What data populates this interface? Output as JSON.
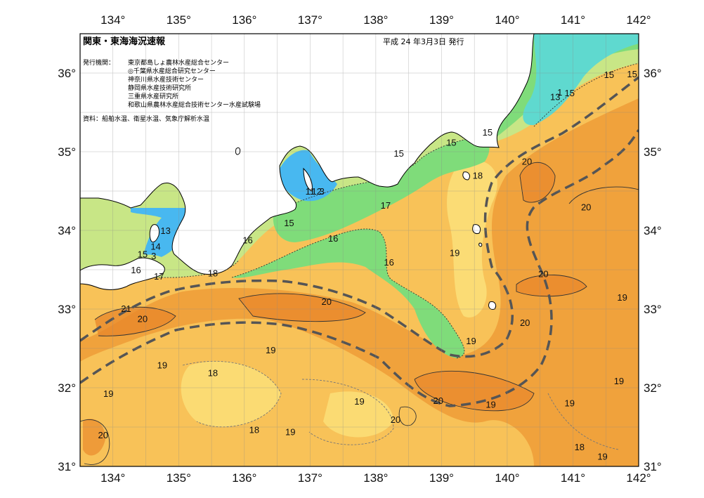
{
  "map": {
    "title": "関東・東海海況速報",
    "issued": "平成 24 年3月3日 発行",
    "issuer_label": "発行機関：",
    "issuers": [
      "東京都島しょ農林水産総合センター",
      "◎千葉県水産総合研究センター",
      "神奈川県水産技術センター",
      "静岡県水産技術研究所",
      "三重県水産研究所",
      "和歌山県農林水産総合技術センター水産試験場"
    ],
    "source": "資料：船舶水温、衛星水温、気象庁解析水温",
    "lon_labels": [
      "134°",
      "135°",
      "136°",
      "137°",
      "138°",
      "139°",
      "140°",
      "141°",
      "142°"
    ],
    "lat_labels": [
      "36°",
      "35°",
      "34°",
      "33°",
      "32°",
      "31°"
    ],
    "contour_labels": [
      {
        "text": "15",
        "lon": 141.55,
        "lat": 35.98
      },
      {
        "text": "15",
        "lon": 141.9,
        "lat": 35.99
      },
      {
        "text": "1",
        "lon": 140.8,
        "lat": 35.76
      },
      {
        "text": "15",
        "lon": 140.95,
        "lat": 35.75
      },
      {
        "text": "13",
        "lon": 140.73,
        "lat": 35.7
      },
      {
        "text": "15",
        "lon": 139.7,
        "lat": 35.25
      },
      {
        "text": "15",
        "lon": 139.15,
        "lat": 35.12
      },
      {
        "text": "15",
        "lon": 138.35,
        "lat": 34.98
      },
      {
        "text": "20",
        "lon": 140.3,
        "lat": 34.88
      },
      {
        "text": "18",
        "lon": 139.55,
        "lat": 34.7
      },
      {
        "text": "17",
        "lon": 138.15,
        "lat": 34.32
      },
      {
        "text": "20",
        "lon": 141.2,
        "lat": 34.3
      },
      {
        "text": "11",
        "lon": 137.0,
        "lat": 34.5
      },
      {
        "text": "12",
        "lon": 137.1,
        "lat": 34.5
      },
      {
        "text": "3",
        "lon": 137.18,
        "lat": 34.5
      },
      {
        "text": "15",
        "lon": 136.68,
        "lat": 34.1
      },
      {
        "text": "16",
        "lon": 136.05,
        "lat": 33.88
      },
      {
        "text": "16",
        "lon": 137.35,
        "lat": 33.9
      },
      {
        "text": "13",
        "lon": 134.8,
        "lat": 34.0
      },
      {
        "text": "14",
        "lon": 134.65,
        "lat": 33.8
      },
      {
        "text": "15",
        "lon": 134.45,
        "lat": 33.7
      },
      {
        "text": "3",
        "lon": 134.62,
        "lat": 33.68
      },
      {
        "text": "19",
        "lon": 139.2,
        "lat": 33.72
      },
      {
        "text": "16",
        "lon": 138.2,
        "lat": 33.6
      },
      {
        "text": "16",
        "lon": 134.35,
        "lat": 33.5
      },
      {
        "text": "17",
        "lon": 134.7,
        "lat": 33.42
      },
      {
        "text": "18",
        "lon": 135.52,
        "lat": 33.46
      },
      {
        "text": "20",
        "lon": 140.55,
        "lat": 33.45
      },
      {
        "text": "20",
        "lon": 137.25,
        "lat": 33.1
      },
      {
        "text": "21",
        "lon": 134.2,
        "lat": 33.01
      },
      {
        "text": "20",
        "lon": 134.45,
        "lat": 32.88
      },
      {
        "text": "19",
        "lon": 141.75,
        "lat": 33.15
      },
      {
        "text": "20",
        "lon": 140.27,
        "lat": 32.83
      },
      {
        "text": "19",
        "lon": 139.45,
        "lat": 32.6
      },
      {
        "text": "19",
        "lon": 136.4,
        "lat": 32.48
      },
      {
        "text": "19",
        "lon": 134.75,
        "lat": 32.29
      },
      {
        "text": "18",
        "lon": 135.52,
        "lat": 32.19
      },
      {
        "text": "19",
        "lon": 141.7,
        "lat": 32.09
      },
      {
        "text": "19",
        "lon": 133.93,
        "lat": 31.93
      },
      {
        "text": "19",
        "lon": 137.75,
        "lat": 31.83
      },
      {
        "text": "20",
        "lon": 138.95,
        "lat": 31.84
      },
      {
        "text": "19",
        "lon": 139.75,
        "lat": 31.79
      },
      {
        "text": "19",
        "lon": 140.95,
        "lat": 31.81
      },
      {
        "text": "20",
        "lon": 138.3,
        "lat": 31.6
      },
      {
        "text": "18",
        "lon": 136.15,
        "lat": 31.47
      },
      {
        "text": "19",
        "lon": 136.7,
        "lat": 31.44
      },
      {
        "text": "20",
        "lon": 133.85,
        "lat": 31.4
      },
      {
        "text": "18",
        "lon": 141.1,
        "lat": 31.25
      },
      {
        "text": "19",
        "lon": 141.45,
        "lat": 31.13
      }
    ]
  },
  "colors": {
    "cool": "#48b8f0",
    "cyan": "#5fd9cf",
    "green": "#7fdc7a",
    "lightgreen": "#c8e686",
    "yellow": "#fbe17a",
    "lightorange": "#f8c258",
    "orange": "#f0a23c",
    "deeporange": "#e8862a",
    "land": "#ffffff",
    "current": "#555555"
  }
}
